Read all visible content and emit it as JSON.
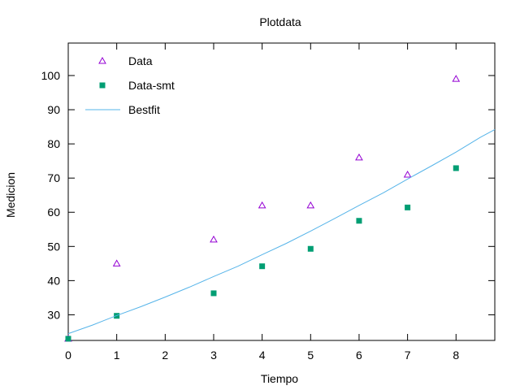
{
  "chart_data": {
    "type": "scatter",
    "title": "Plotdata",
    "xlabel": "Tiempo",
    "ylabel": "Medicion",
    "xlim": [
      0,
      8.8
    ],
    "ylim": [
      22.5,
      109.5
    ],
    "x_ticks": [
      0,
      1,
      2,
      3,
      4,
      5,
      6,
      7,
      8
    ],
    "y_ticks": [
      30,
      40,
      50,
      60,
      70,
      80,
      90,
      100
    ],
    "grid": false,
    "legend_position": "top-left",
    "series": [
      {
        "name": "Data",
        "kind": "points",
        "marker": "open-triangle",
        "color": "#9400d3",
        "x": [
          0,
          1,
          3,
          4,
          5,
          6,
          7,
          8
        ],
        "y": [
          23,
          45,
          52,
          62,
          62,
          76,
          71,
          99
        ]
      },
      {
        "name": "Data-smt",
        "kind": "points",
        "marker": "filled-square",
        "color": "#009e73",
        "x": [
          0,
          1,
          3,
          4,
          5,
          6,
          7,
          8
        ],
        "y": [
          23,
          29.7,
          36.3,
          44.2,
          49.3,
          57.5,
          61.4,
          72.9
        ]
      },
      {
        "name": "Bestfit",
        "kind": "line",
        "color": "#56b4e9",
        "x": [
          0,
          0.5,
          1,
          1.5,
          2,
          2.5,
          3,
          3.5,
          4,
          4.5,
          5,
          5.5,
          6,
          6.5,
          7,
          7.5,
          8,
          8.5,
          8.8
        ],
        "y": [
          24.5,
          27.0,
          29.8,
          32.4,
          35.2,
          38.1,
          41.2,
          44.2,
          47.6,
          50.9,
          54.5,
          58.2,
          62.0,
          65.7,
          69.7,
          73.6,
          77.6,
          81.9,
          84.2
        ]
      }
    ]
  }
}
